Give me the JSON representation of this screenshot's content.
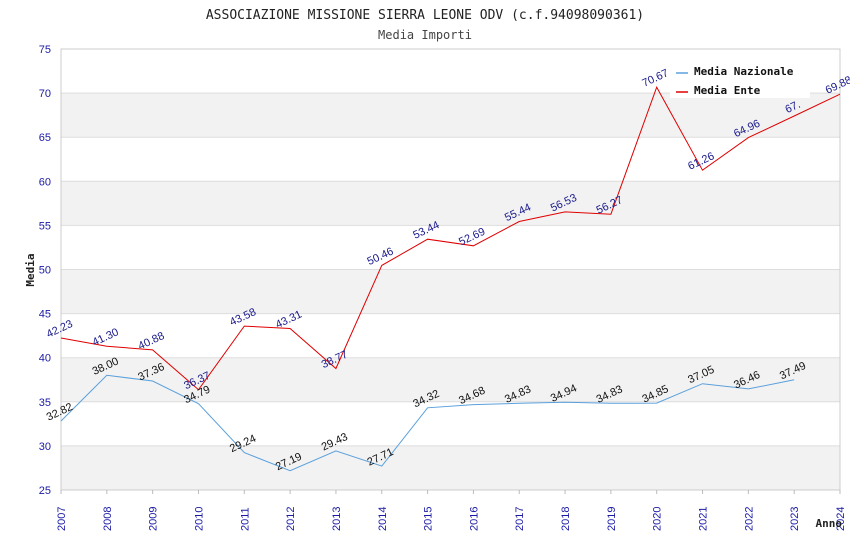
{
  "chart_data": {
    "type": "line",
    "title": "ASSOCIAZIONE MISSIONE SIERRA LEONE ODV (c.f.94098090361)",
    "subtitle": "Media Importi",
    "xlabel": "Anno",
    "ylabel": "Media",
    "ylim": [
      25,
      75
    ],
    "yticks": [
      25,
      30,
      35,
      40,
      45,
      50,
      55,
      60,
      65,
      70,
      75
    ],
    "x": [
      "2007",
      "2008",
      "2009",
      "2010",
      "2011",
      "2012",
      "2013",
      "2014",
      "2015",
      "2016",
      "2017",
      "2018",
      "2019",
      "2020",
      "2021",
      "2022",
      "2023",
      "2024"
    ],
    "grid": true,
    "legend_position": "top-right",
    "series": [
      {
        "name": "Media Nazionale",
        "color": "#5aa0dc",
        "values": [
          32.82,
          38.0,
          37.36,
          34.79,
          29.24,
          27.19,
          29.43,
          27.71,
          34.32,
          34.68,
          34.83,
          34.94,
          34.83,
          34.85,
          37.05,
          36.46,
          37.49,
          null
        ],
        "labels": [
          "32.82",
          "38.00",
          "37.36",
          "34.79",
          "29.24",
          "27.19",
          "29.43",
          "27.71",
          "34.32",
          "34.68",
          "34.83",
          "34.94",
          "34.83",
          "34.85",
          "37.05",
          "36.46",
          "37.49",
          ""
        ]
      },
      {
        "name": "Media Ente",
        "color": "#e00000",
        "values": [
          42.23,
          41.3,
          40.88,
          36.37,
          43.58,
          43.31,
          38.77,
          50.46,
          53.44,
          52.69,
          55.44,
          56.53,
          56.27,
          70.67,
          61.26,
          64.96,
          67.4,
          69.88
        ],
        "labels": [
          "42.23",
          "41.30",
          "40.88",
          "36.37",
          "43.58",
          "43.31",
          "38.77",
          "50.46",
          "53.44",
          "52.69",
          "55.44",
          "56.53",
          "56.27",
          "70.67",
          "61.26",
          "64.96",
          "67.",
          "69.88"
        ]
      }
    ]
  }
}
